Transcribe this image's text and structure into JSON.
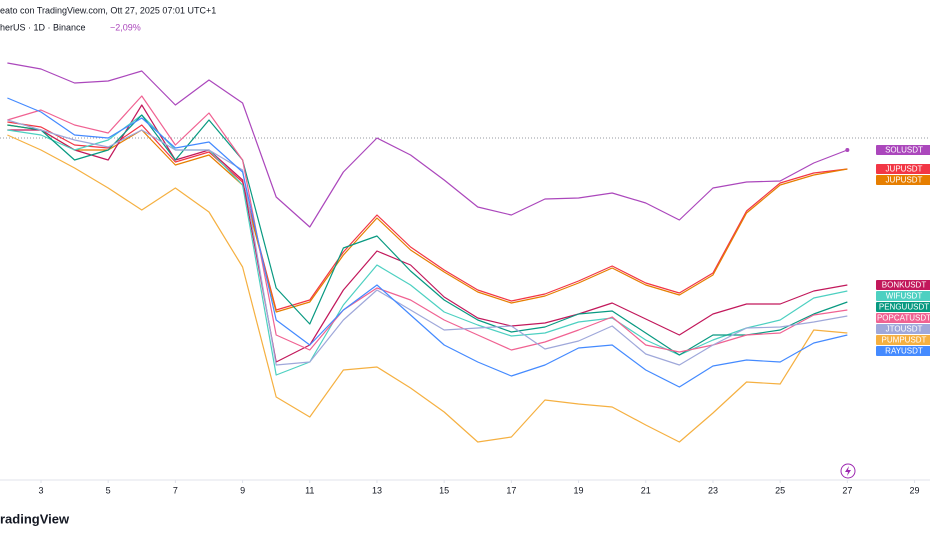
{
  "chart_data": {
    "type": "line",
    "source": "eato con TradingView.com, Ott 27, 2025 07:01 UTC+1",
    "symbol": "herUS · 1D · Binance",
    "change": "−2,09%",
    "logo": "radingView",
    "x": [
      2,
      3,
      4,
      5,
      6,
      7,
      8,
      9,
      10,
      11,
      12,
      13,
      14,
      15,
      16,
      17,
      18,
      19,
      20,
      21,
      22,
      23,
      24,
      25,
      26,
      27
    ],
    "xlim": [
      1.78,
      29.46
    ],
    "xticks": [
      3,
      5,
      7,
      9,
      11,
      13,
      15,
      17,
      19,
      21,
      23,
      25,
      27,
      29
    ],
    "ylim": [
      0,
      480
    ],
    "series": [
      {
        "name": "SOLUSDT",
        "color": "#ab47bc",
        "values": [
          417,
          411,
          397,
          399,
          409,
          375,
          400,
          377,
          283,
          253,
          308,
          342,
          325,
          300,
          273,
          265,
          281,
          282,
          287,
          277,
          260,
          292,
          298,
          299,
          317,
          330
        ]
      },
      {
        "name": "JUPUSDT",
        "color": "#f23645",
        "values": [
          358,
          353,
          335,
          332,
          355,
          318,
          328,
          298,
          170,
          180,
          228,
          265,
          233,
          210,
          190,
          179,
          186,
          199,
          214,
          197,
          187,
          207,
          269,
          297,
          307,
          311
        ]
      },
      {
        "name": "JUPUSDT",
        "color": "#e67e00",
        "values": [
          355,
          350,
          330,
          330,
          350,
          315,
          325,
          295,
          168,
          178,
          225,
          262,
          230,
          208,
          188,
          177,
          184,
          197,
          212,
          195,
          185,
          205,
          267,
          295,
          305,
          311
        ]
      },
      {
        "name": "BONKUSDT",
        "color": "#c2185b",
        "values": [
          350,
          350,
          330,
          320,
          375,
          320,
          330,
          300,
          118,
          135,
          190,
          229,
          215,
          183,
          162,
          154,
          157,
          166,
          177,
          161,
          145,
          166,
          176,
          176,
          189,
          195
        ]
      },
      {
        "name": "WIFUSDT",
        "color": "#4dd0c1",
        "values": [
          350,
          345,
          330,
          340,
          365,
          330,
          330,
          295,
          105,
          118,
          175,
          215,
          195,
          168,
          155,
          144,
          147,
          158,
          162,
          140,
          125,
          140,
          152,
          160,
          182,
          189
        ]
      },
      {
        "name": "PENGUUSDT",
        "color": "#089981",
        "values": [
          355,
          350,
          320,
          330,
          365,
          320,
          360,
          320,
          192,
          156,
          232,
          244,
          209,
          180,
          160,
          148,
          153,
          166,
          169,
          147,
          125,
          145,
          145,
          150,
          166,
          178
        ]
      },
      {
        "name": "POPCATUSDT",
        "color": "#f06292",
        "values": [
          360,
          370,
          355,
          347,
          384,
          335,
          367,
          320,
          145,
          130,
          170,
          192,
          180,
          160,
          145,
          130,
          138,
          150,
          163,
          135,
          128,
          135,
          145,
          147,
          165,
          170
        ]
      },
      {
        "name": "JTOUSDT",
        "color": "#9fa8da",
        "values": [
          360,
          350,
          340,
          333,
          350,
          330,
          330,
          310,
          115,
          118,
          160,
          190,
          170,
          150,
          152,
          154,
          131,
          139,
          154,
          126,
          115,
          135,
          152,
          153,
          158,
          164
        ]
      },
      {
        "name": "PUMPUSDT",
        "color": "#f5b041",
        "values": [
          345,
          330,
          312,
          292,
          270,
          292,
          268,
          213,
          83,
          63,
          110,
          113,
          92,
          68,
          38,
          43,
          80,
          76,
          73,
          55,
          38,
          67,
          98,
          96,
          150,
          147
        ]
      },
      {
        "name": "RAYUSDT",
        "color": "#448aff",
        "values": [
          382,
          368,
          345,
          342,
          362,
          332,
          338,
          308,
          160,
          135,
          170,
          195,
          165,
          135,
          118,
          104,
          115,
          132,
          135,
          110,
          93,
          114,
          120,
          118,
          137,
          145
        ]
      }
    ]
  }
}
